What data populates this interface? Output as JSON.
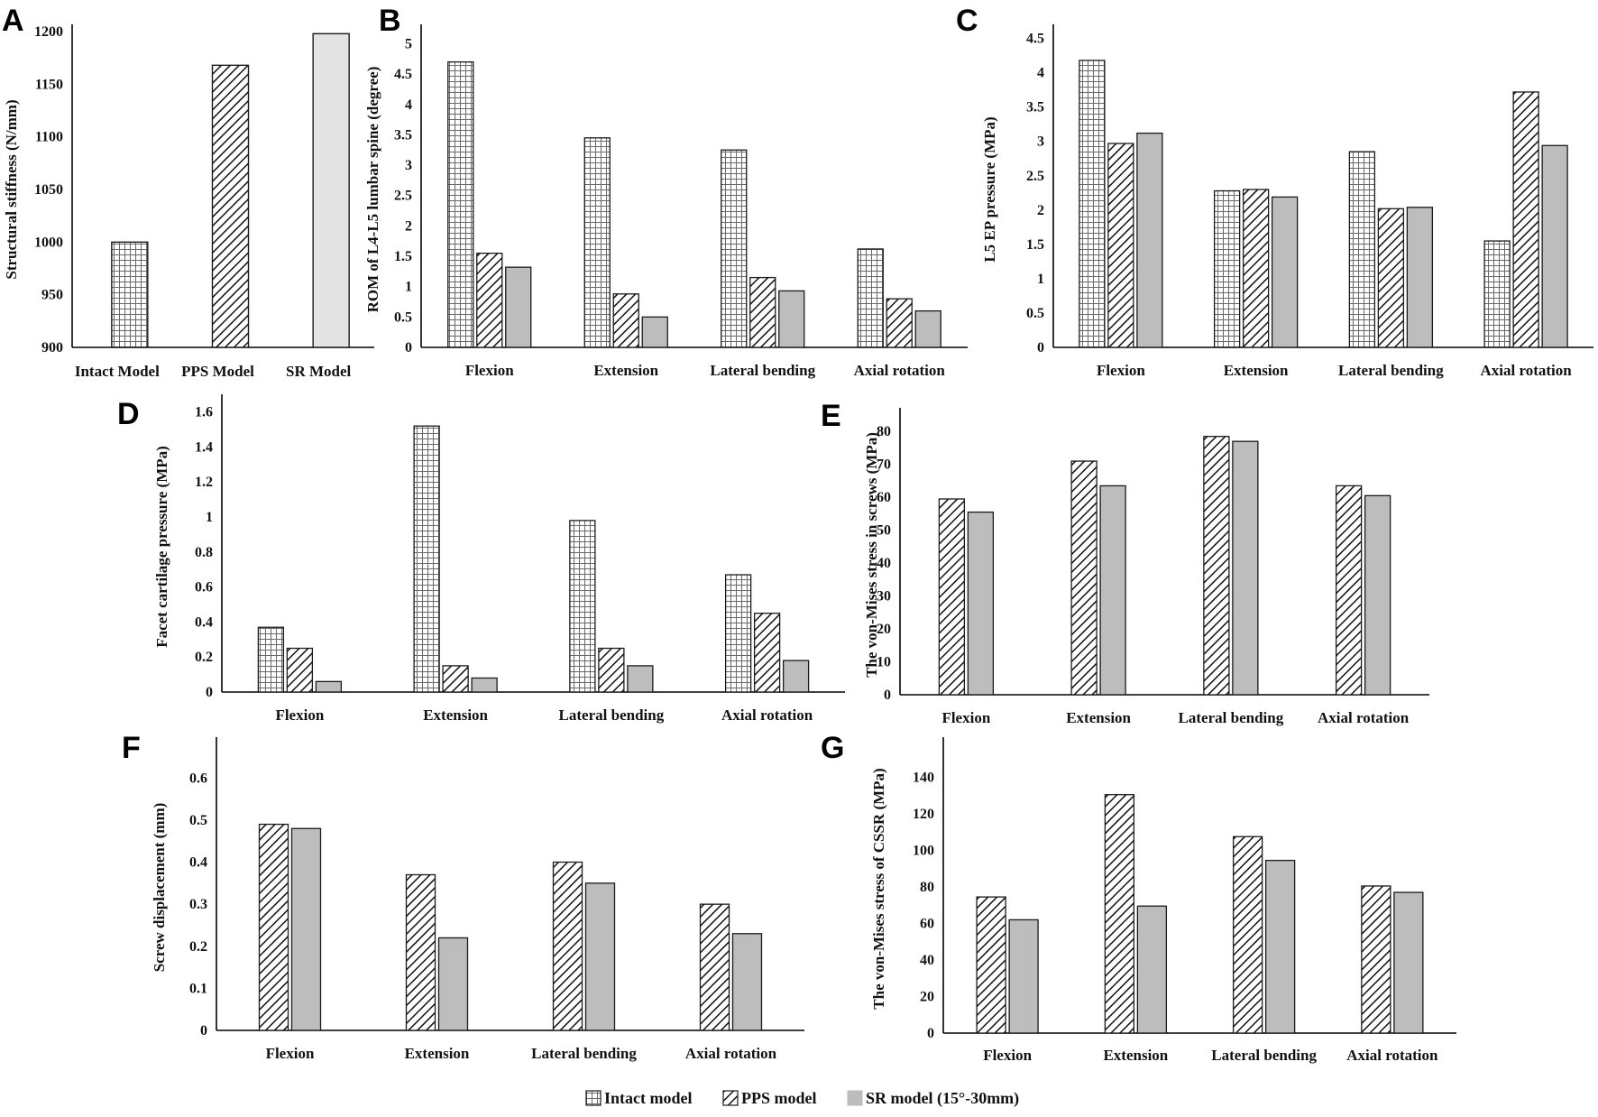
{
  "legend": {
    "intact": "Intact model",
    "pps": "PPS model",
    "sr": "SR model (15°-30mm)"
  },
  "colors": {
    "axis": "#000000",
    "bar_stroke": "#1a1a1a",
    "sr_fill": "#bdbdbd",
    "sr_fill_light": "#e4e4e4",
    "hatch": "#111111",
    "grid_line": "#9a9a9a"
  },
  "chart_data": [
    {
      "id": "A",
      "letter": "A",
      "type": "bar",
      "categories": [
        "Intact Model",
        "PPS Model",
        "SR Model"
      ],
      "series": [
        {
          "name": "Structural stiffness",
          "values": [
            1000,
            1168,
            1198
          ],
          "patterns": [
            "intact",
            "pps",
            "srlight"
          ]
        }
      ],
      "ylabel": "Structural stiffness (N/mm)",
      "ylim": [
        900,
        1200
      ],
      "yticks": [
        "900",
        "950",
        "1000",
        "1050",
        "1100",
        "1150",
        "1200"
      ]
    },
    {
      "id": "B",
      "letter": "B",
      "type": "bar",
      "categories": [
        "Flexion",
        "Extension",
        "Lateral bending",
        "Axial  rotation"
      ],
      "series": [
        {
          "name": "Intact model",
          "values": [
            4.7,
            3.45,
            3.25,
            1.62
          ]
        },
        {
          "name": "PPS model",
          "values": [
            1.55,
            0.88,
            1.15,
            0.8
          ]
        },
        {
          "name": "SR model",
          "values": [
            1.32,
            0.5,
            0.93,
            0.6
          ]
        }
      ],
      "ylabel": "ROM of L4-L5 lumbar spine (degree)",
      "ylim": [
        0,
        5.2
      ],
      "yticks": [
        "0",
        "0.5",
        "1",
        "1.5",
        "2",
        "2.5",
        "3",
        "3.5",
        "4",
        "4.5",
        "5"
      ]
    },
    {
      "id": "C",
      "letter": "C",
      "type": "bar",
      "categories": [
        "Flexion",
        "Extension",
        "Lateral bending",
        "Axial  rotation"
      ],
      "series": [
        {
          "name": "Intact model",
          "values": [
            4.18,
            2.28,
            2.85,
            1.55
          ]
        },
        {
          "name": "PPS model",
          "values": [
            2.97,
            2.3,
            2.02,
            3.72
          ]
        },
        {
          "name": "SR model",
          "values": [
            3.12,
            2.19,
            2.04,
            2.94
          ]
        }
      ],
      "ylabel": "L5 EP pressure (MPa)",
      "ylim": [
        0,
        4.6
      ],
      "yticks": [
        "0",
        "0.5",
        "1",
        "1.5",
        "2",
        "2.5",
        "3",
        "3.5",
        "4",
        "4.5"
      ]
    },
    {
      "id": "D",
      "letter": "D",
      "type": "bar",
      "categories": [
        "Flexion",
        "Extension",
        "Lateral bending",
        "Axial  rotation"
      ],
      "series": [
        {
          "name": "Intact model",
          "values": [
            0.37,
            1.52,
            0.98,
            0.67
          ]
        },
        {
          "name": "PPS model",
          "values": [
            0.25,
            0.15,
            0.25,
            0.45
          ]
        },
        {
          "name": "SR model",
          "values": [
            0.06,
            0.08,
            0.15,
            0.18
          ]
        }
      ],
      "ylabel": "Facet cartilage pressure (MPa)",
      "ylim": [
        0,
        1.66
      ],
      "yticks": [
        "0",
        "0.2",
        "0.4",
        "0.6",
        "0.8",
        "1",
        "1.2",
        "1.4",
        "1.6"
      ]
    },
    {
      "id": "E",
      "letter": "E",
      "type": "bar",
      "categories": [
        "Flexion",
        "Extension",
        "Lateral bending",
        "Axial  rotation"
      ],
      "series": [
        {
          "name": "PPS model",
          "values": [
            59.5,
            71,
            78.5,
            63.5
          ]
        },
        {
          "name": "SR model",
          "values": [
            55.5,
            63.5,
            77,
            60.5
          ]
        }
      ],
      "ylabel": "The von-Mises stress in screws (MPa)",
      "ylim": [
        0,
        85
      ],
      "yticks": [
        "0",
        "10",
        "20",
        "30",
        "40",
        "50",
        "60",
        "70",
        "80"
      ]
    },
    {
      "id": "F",
      "letter": "F",
      "type": "bar",
      "categories": [
        "Flexion",
        "Extension",
        "Lateral bending",
        "Axial  rotation"
      ],
      "series": [
        {
          "name": "PPS model",
          "values": [
            0.49,
            0.37,
            0.4,
            0.3
          ]
        },
        {
          "name": "SR model",
          "values": [
            0.48,
            0.22,
            0.35,
            0.23
          ]
        }
      ],
      "ylabel": "Screw displacement (mm)",
      "ylim": [
        0,
        0.68
      ],
      "yticks": [
        "0",
        "0.1",
        "0.2",
        "0.3",
        "0.4",
        "0.5",
        "0.6"
      ]
    },
    {
      "id": "G",
      "letter": "G",
      "type": "bar",
      "categories": [
        "Flexion",
        "Extension",
        "Lateral bending",
        "Axial  rotation"
      ],
      "series": [
        {
          "name": "PPS model",
          "values": [
            74.5,
            130.5,
            107.5,
            80.5
          ]
        },
        {
          "name": "SR model",
          "values": [
            62,
            69.5,
            94.5,
            77
          ]
        }
      ],
      "ylabel": "The von-Mises stress of CSSR (MPa)",
      "ylim": [
        0,
        158
      ],
      "yticks": [
        "0",
        "20",
        "40",
        "60",
        "80",
        "100",
        "120",
        "140"
      ]
    }
  ]
}
